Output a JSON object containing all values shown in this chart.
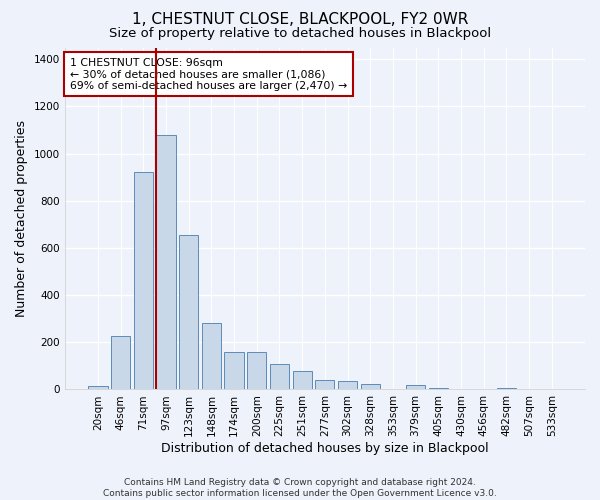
{
  "title": "1, CHESTNUT CLOSE, BLACKPOOL, FY2 0WR",
  "subtitle": "Size of property relative to detached houses in Blackpool",
  "xlabel": "Distribution of detached houses by size in Blackpool",
  "ylabel": "Number of detached properties",
  "categories": [
    "20sqm",
    "46sqm",
    "71sqm",
    "97sqm",
    "123sqm",
    "148sqm",
    "174sqm",
    "200sqm",
    "225sqm",
    "251sqm",
    "277sqm",
    "302sqm",
    "328sqm",
    "353sqm",
    "379sqm",
    "405sqm",
    "430sqm",
    "456sqm",
    "482sqm",
    "507sqm",
    "533sqm"
  ],
  "values": [
    15,
    225,
    920,
    1080,
    655,
    280,
    160,
    160,
    110,
    78,
    42,
    35,
    22,
    0,
    18,
    8,
    0,
    0,
    8,
    0,
    0
  ],
  "bar_color": "#c8d8e8",
  "bar_edge_color": "#4a7db0",
  "vline_color": "#aa0000",
  "vline_pos": 2.575,
  "annotation_text": "1 CHESTNUT CLOSE: 96sqm\n← 30% of detached houses are smaller (1,086)\n69% of semi-detached houses are larger (2,470) →",
  "annotation_box_color": "#aa0000",
  "ylim": [
    0,
    1450
  ],
  "yticks": [
    0,
    200,
    400,
    600,
    800,
    1000,
    1200,
    1400
  ],
  "footer": "Contains HM Land Registry data © Crown copyright and database right 2024.\nContains public sector information licensed under the Open Government Licence v3.0.",
  "bg_color": "#eef2fa",
  "plot_bg_color": "#eef2fa",
  "grid_color": "#ffffff",
  "title_fontsize": 11,
  "subtitle_fontsize": 9.5,
  "axis_label_fontsize": 9,
  "tick_fontsize": 7.5,
  "footer_fontsize": 6.5
}
